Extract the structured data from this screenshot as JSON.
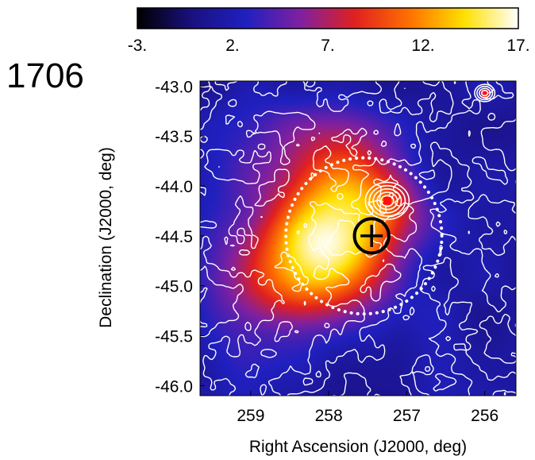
{
  "chart_data": {
    "type": "heatmap",
    "title": "",
    "panel_label": "1706",
    "xlabel": "Right Ascension (J2000, deg)",
    "ylabel": "Declination (J2000, deg)",
    "xlim": [
      259.65,
      255.6
    ],
    "ylim": [
      -46.1,
      -42.95
    ],
    "x_ticks": [
      259,
      258,
      257,
      256
    ],
    "x_tick_labels": [
      "259",
      "258",
      "257",
      "256"
    ],
    "y_ticks": [
      -43.0,
      -43.5,
      -44.0,
      -44.5,
      -45.0,
      -45.5,
      -46.0
    ],
    "y_tick_labels": [
      "-43.0",
      "-43.5",
      "-44.0",
      "-44.5",
      "-45.0",
      "-45.5",
      "-46.0"
    ],
    "colorbar": {
      "min": -3,
      "max": 17,
      "ticks": [
        -3,
        2,
        7,
        12,
        17
      ],
      "tick_labels": [
        "-3.",
        "2.",
        "7.",
        "12.",
        "17."
      ],
      "colors": [
        "#000000",
        "#1a1080",
        "#2020c0",
        "#8020a0",
        "#e02020",
        "#ff7000",
        "#ffe000",
        "#ffffff"
      ]
    },
    "blobs": [
      {
        "ra": 257.9,
        "dec": -44.65,
        "amplitude": 12.5,
        "sigma_ra": 0.55,
        "sigma_dec": 0.45
      },
      {
        "ra": 258.6,
        "dec": -44.9,
        "amplitude": 6.0,
        "sigma_ra": 0.45,
        "sigma_dec": 0.4
      },
      {
        "ra": 257.75,
        "dec": -43.95,
        "amplitude": 6.5,
        "sigma_ra": 0.45,
        "sigma_dec": 0.4
      },
      {
        "ra": 257.15,
        "dec": -44.15,
        "amplitude": 3.5,
        "sigma_ra": 0.3,
        "sigma_dec": 0.25
      },
      {
        "ra": 258.55,
        "dec": -43.7,
        "amplitude": 2.5,
        "sigma_ra": 0.6,
        "sigma_dec": 0.5
      },
      {
        "ra": 259.3,
        "dec": -45.1,
        "amplitude": 2.5,
        "sigma_ra": 0.4,
        "sigma_dec": 0.6
      }
    ],
    "background_level": 1.3,
    "dotted_circle": {
      "ra": 257.55,
      "dec": -44.5,
      "radius_deg": 1.0
    },
    "source_marker": {
      "ra": 257.45,
      "dec": -44.5,
      "radius_deg": 0.22
    },
    "pulsar_contours": [
      {
        "ra": 257.25,
        "dec": -44.15,
        "radii_deg": [
          0.08,
          0.13,
          0.18,
          0.23,
          0.28
        ]
      },
      {
        "ra": 256.0,
        "dec": -43.07,
        "radii_deg": [
          0.04,
          0.07,
          0.1,
          0.13
        ]
      }
    ]
  }
}
